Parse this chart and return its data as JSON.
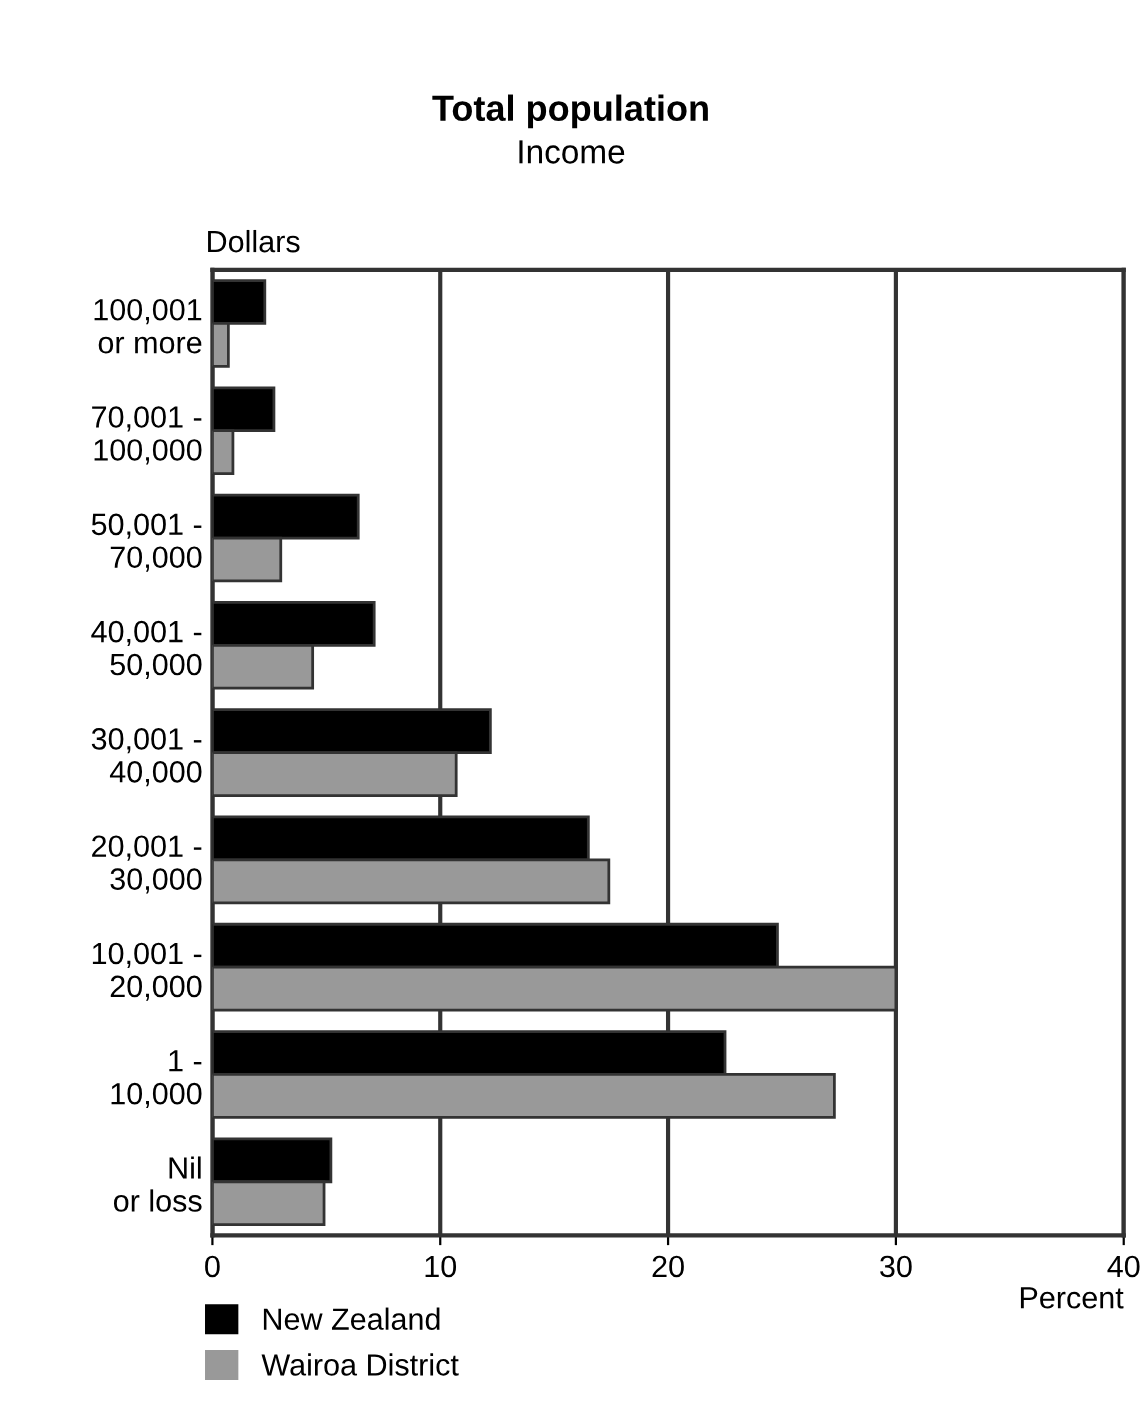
{
  "chart_data": {
    "type": "bar",
    "orientation": "horizontal",
    "title": "Total population",
    "subtitle": "Income",
    "ylabel": "Dollars",
    "xlabel": "Percent",
    "categories": [
      "100,001\nor more",
      "70,001 -\n100,000",
      "50,001 -\n70,000",
      "40,001 -\n50,000",
      "30,001 -\n40,000",
      "20,001 -\n30,000",
      "10,001 -\n20,000",
      "1 -\n10,000",
      "Nil\nor loss"
    ],
    "series": [
      {
        "name": "New Zealand",
        "color": "#000000",
        "values": [
          2.3,
          2.7,
          6.4,
          7.1,
          12.2,
          16.5,
          24.8,
          22.5,
          5.2
        ]
      },
      {
        "name": "Wairoa District",
        "color": "#999999",
        "values": [
          0.7,
          0.9,
          3.0,
          4.4,
          10.7,
          17.4,
          30.0,
          27.3,
          4.9
        ]
      }
    ],
    "xlim": [
      0,
      40
    ],
    "xticks": [
      0,
      10,
      20,
      30,
      40
    ],
    "grid": "x",
    "legend": "bottom left"
  }
}
